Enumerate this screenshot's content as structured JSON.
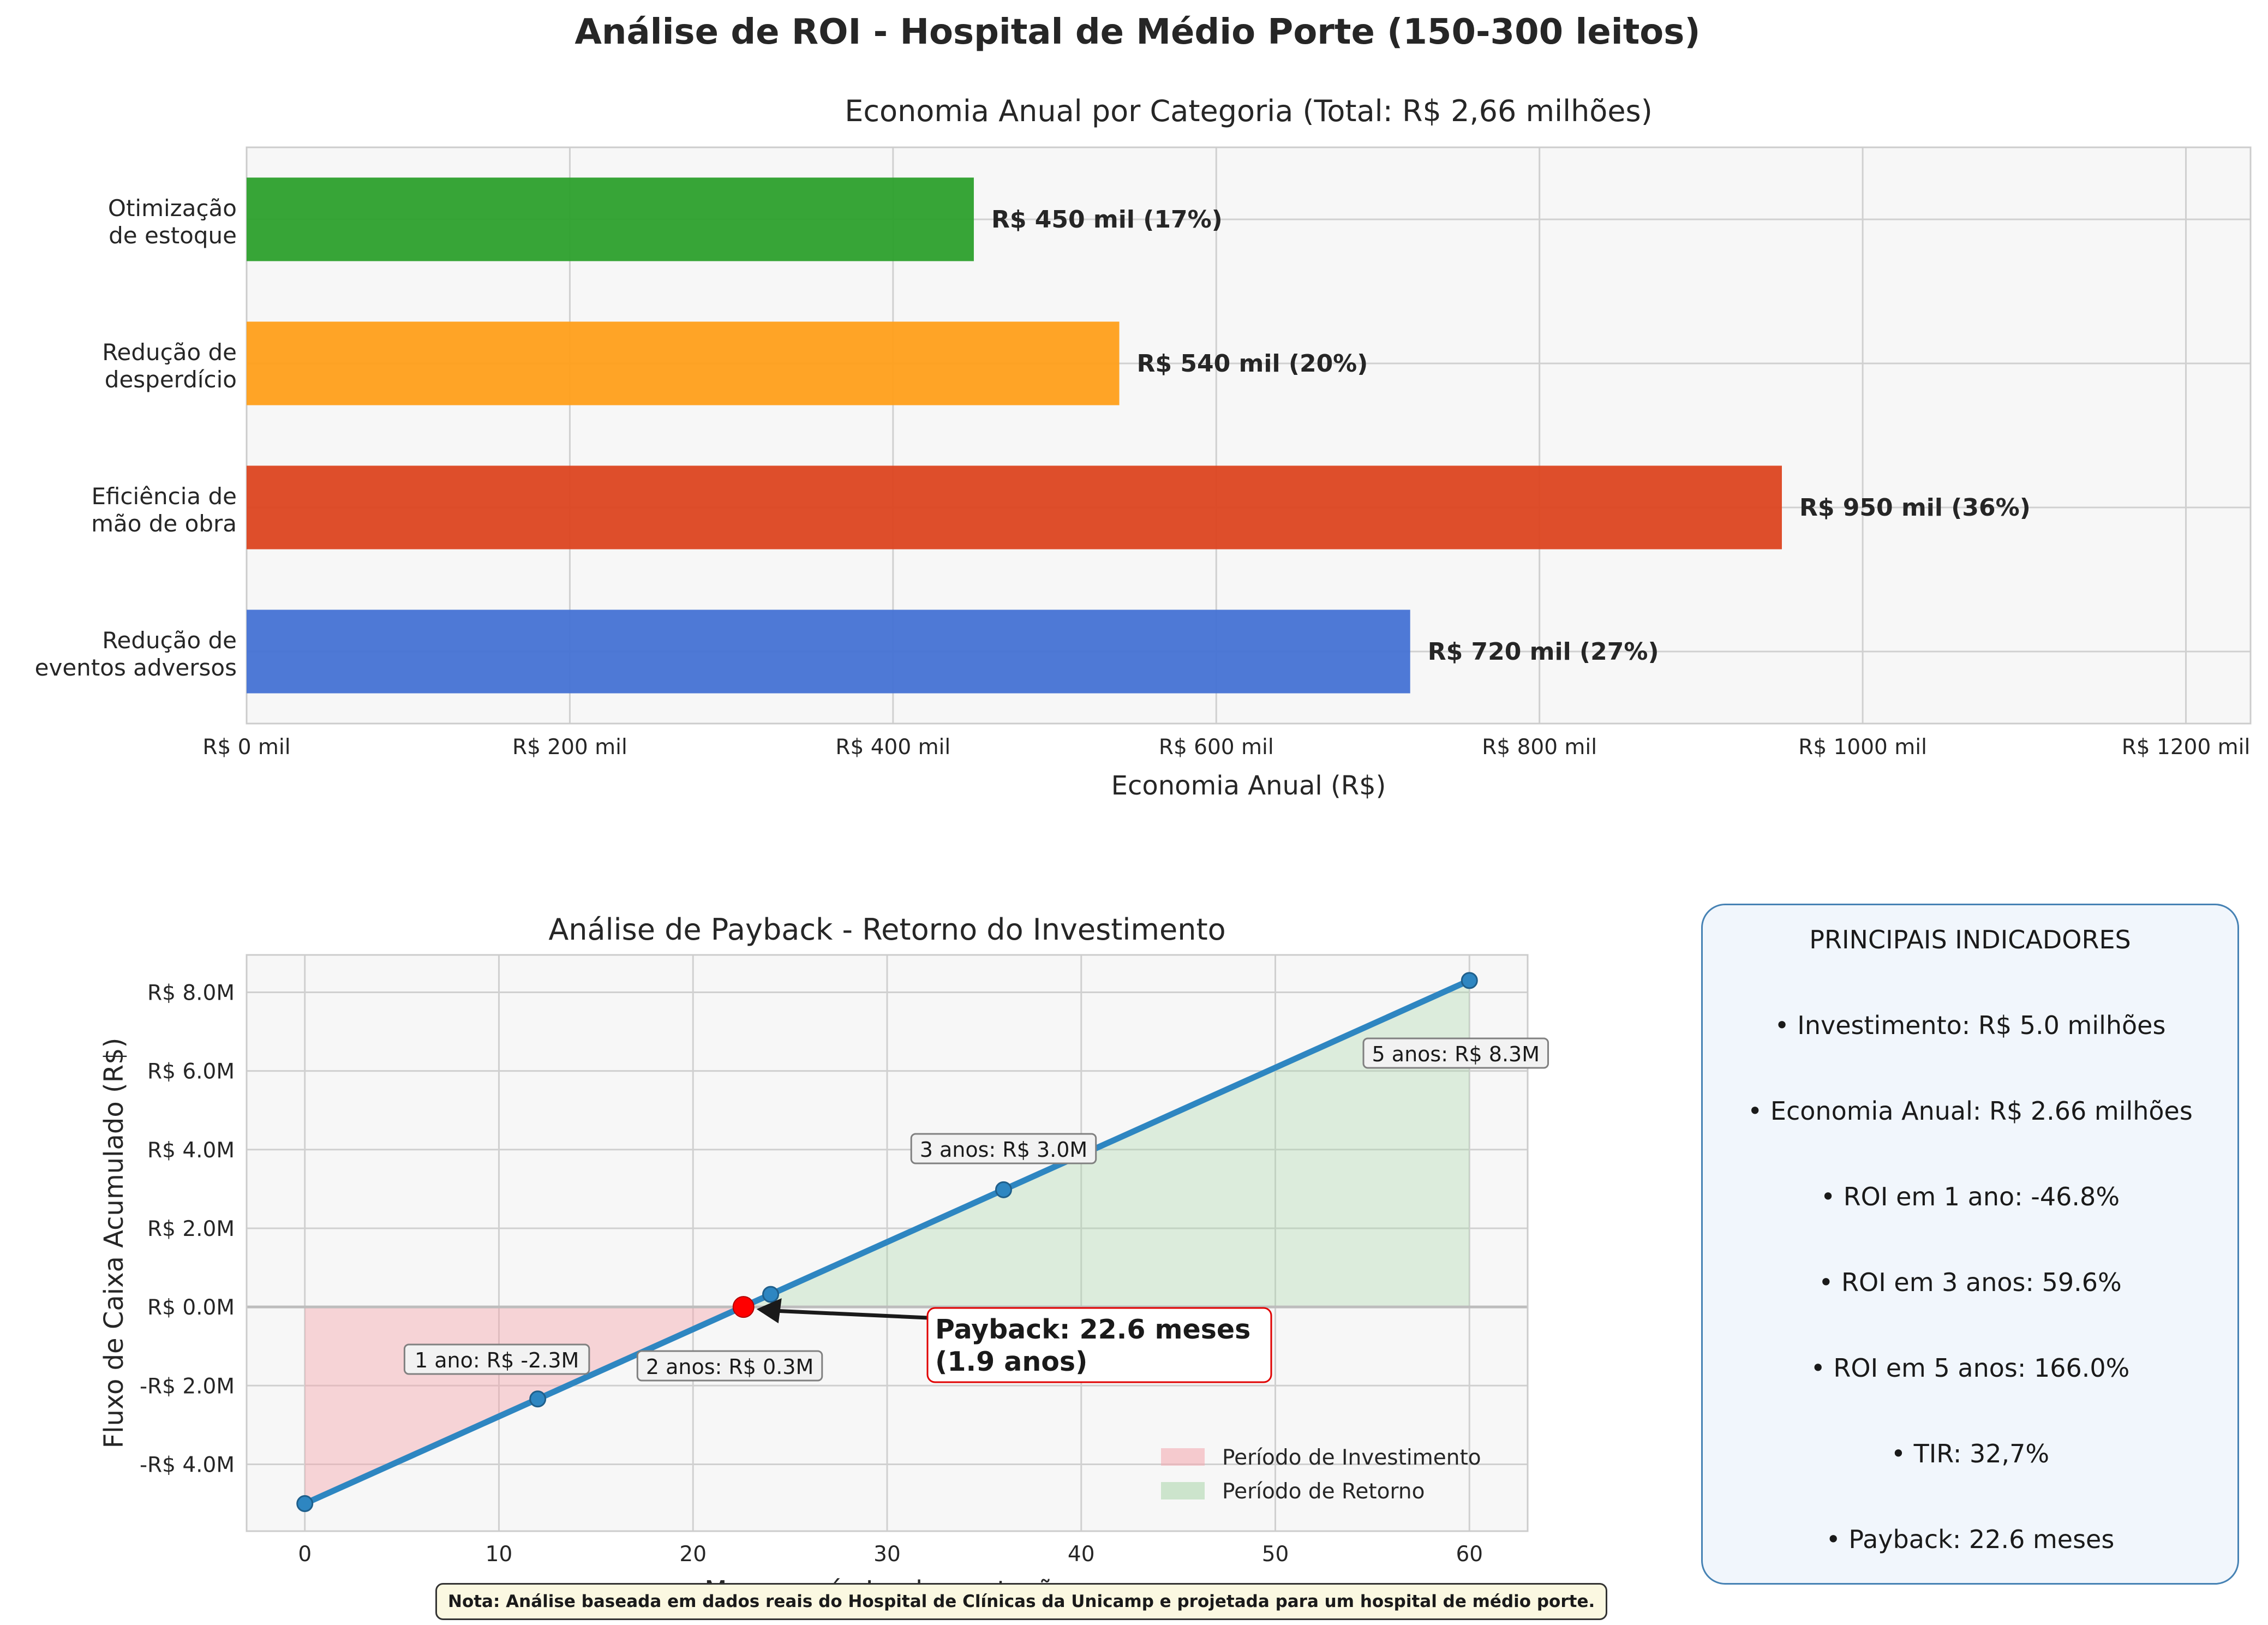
{
  "title": "Análise de ROI - Hospital de Médio Porte (150-300 leitos)",
  "chart_data": [
    {
      "type": "bar",
      "orientation": "horizontal",
      "title": "Economia Anual por Categoria (Total: R$ 2,66 milhões)",
      "xlabel": "Economia Anual (R$)",
      "ylabel": "",
      "xlim": [
        0,
        1240
      ],
      "grid": true,
      "categories": [
        [
          "Otimização",
          "de estoque"
        ],
        [
          "Redução de",
          "desperdício"
        ],
        [
          "Eficiência de",
          "mão de obra"
        ],
        [
          "Redução de",
          "eventos adversos"
        ]
      ],
      "values": [
        450,
        540,
        950,
        720
      ],
      "data_labels": [
        "R$ 450 mil (17%)",
        "R$ 540 mil (20%)",
        "R$ 950 mil (36%)",
        "R$ 720 mil (27%)"
      ],
      "colors": [
        "#2ca02c",
        "#ff9f1a",
        "#dc4520",
        "#4472d4"
      ],
      "x_ticks": [
        0,
        200,
        400,
        600,
        800,
        1000,
        1200
      ],
      "x_tick_labels": [
        "R$ 0 mil",
        "R$ 200 mil",
        "R$ 400 mil",
        "R$ 600 mil",
        "R$ 800 mil",
        "R$ 1000 mil",
        "R$ 1200 mil"
      ]
    },
    {
      "type": "line",
      "title": "Análise de Payback - Retorno do Investimento",
      "xlabel": "Meses após Implementação",
      "ylabel": "Fluxo de Caixa Acumulado (R$)",
      "xlim": [
        -3,
        63
      ],
      "ylim": [
        -5.7,
        8.95
      ],
      "grid": true,
      "x_ticks": [
        0,
        10,
        20,
        30,
        40,
        50,
        60
      ],
      "y_ticks": [
        -4,
        -2,
        0,
        2,
        4,
        6,
        8
      ],
      "y_tick_labels": [
        "-R$ 4.0M",
        "-R$ 2.0M",
        "R$ 0.0M",
        "R$ 2.0M",
        "R$ 4.0M",
        "R$ 6.0M",
        "R$ 8.0M"
      ],
      "series": [
        {
          "color": "#2e86c1",
          "x": [
            0,
            12,
            24,
            36,
            60
          ],
          "y": [
            -5.0,
            -2.34,
            0.32,
            2.98,
            8.3
          ]
        }
      ],
      "payback": {
        "x": 22.6,
        "y": 0.0,
        "color": "#ff0000",
        "label_line1": "Payback: 22.6 meses",
        "label_line2": "(1.9 anos)"
      },
      "annotations": [
        {
          "text": "1 ano: R$ -2.3M",
          "x": 12,
          "y": -2.34
        },
        {
          "text": "2 anos: R$ 0.3M",
          "x": 24,
          "y": 0.32
        },
        {
          "text": "3 anos: R$ 3.0M",
          "x": 36,
          "y": 2.98
        },
        {
          "text": "5 anos: R$ 8.3M",
          "x": 60,
          "y": 8.3
        }
      ],
      "legend": {
        "placement": "lower right",
        "entries": [
          {
            "label": "Período de Investimento",
            "color": "#f4a6ad"
          },
          {
            "label": "Período de Retorno",
            "color": "#a9d6a9"
          }
        ]
      }
    }
  ],
  "indicators": {
    "heading": "PRINCIPAIS INDICADORES",
    "items": [
      "• Investimento: R$ 5.0 milhões",
      "• Economia Anual: R$ 2.66 milhões",
      "• ROI em 1 ano: -46.8%",
      "• ROI em 3 anos: 59.6%",
      "• ROI em 5 anos: 166.0%",
      "• TIR: 32,7%",
      "• Payback: 22.6 meses"
    ]
  },
  "note": "Nota: Análise baseada em dados reais do Hospital de Clínicas da Unicamp e projetada para um hospital de médio porte."
}
